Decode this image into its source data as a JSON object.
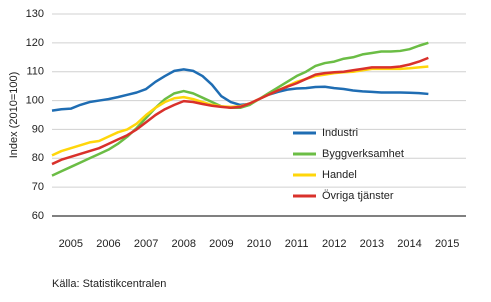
{
  "chart_data": {
    "type": "line",
    "y_label": "Index (2010=100)",
    "source": "Källa: Statistikcentralen",
    "x": [
      2005,
      2005.25,
      2005.5,
      2005.75,
      2006,
      2006.25,
      2006.5,
      2006.75,
      2007,
      2007.25,
      2007.5,
      2007.75,
      2008,
      2008.25,
      2008.5,
      2008.75,
      2009,
      2009.25,
      2009.5,
      2009.75,
      2010,
      2010.25,
      2010.5,
      2010.75,
      2011,
      2011.25,
      2011.5,
      2011.75,
      2012,
      2012.25,
      2012.5,
      2012.75,
      2013,
      2013.25,
      2013.5,
      2013.75,
      2014,
      2014.25,
      2014.5,
      2014.75,
      2015
    ],
    "series": [
      {
        "name": "Industri",
        "color": "#1f6db3",
        "values": [
          96.5,
          97,
          97.2,
          98.5,
          99.5,
          100,
          100.5,
          101.2,
          102,
          102.8,
          104,
          106.5,
          108.5,
          110.3,
          110.8,
          110.3,
          108.5,
          105.5,
          101.5,
          99.5,
          98.5,
          98.8,
          100.5,
          102,
          103,
          103.8,
          104.2,
          104.3,
          104.7,
          104.8,
          104.3,
          104,
          103.5,
          103.2,
          103,
          102.8,
          102.8,
          102.8,
          102.7,
          102.6,
          102.3
        ]
      },
      {
        "name": "Byggverksamhet",
        "color": "#6bbd45",
        "values": [
          74,
          75.5,
          77,
          78.5,
          80,
          81.5,
          83,
          85,
          87.5,
          90.5,
          94,
          97.5,
          100.5,
          102.5,
          103.3,
          102.5,
          101,
          99.5,
          98,
          97.5,
          97.5,
          98.5,
          100.5,
          102.5,
          104.5,
          106.5,
          108.5,
          110,
          112,
          113,
          113.5,
          114.5,
          115,
          116,
          116.5,
          117,
          117,
          117.2,
          117.8,
          119,
          120
        ]
      },
      {
        "name": "Handel",
        "color": "#ffd60a",
        "values": [
          81,
          82.5,
          83.5,
          84.5,
          85.5,
          86,
          87.5,
          89,
          90,
          92,
          95,
          97.5,
          99.5,
          100.8,
          101.2,
          100.5,
          99.5,
          98.5,
          98,
          97.8,
          98,
          99,
          100.5,
          102,
          103.5,
          105,
          106.5,
          107.5,
          108.5,
          109,
          109.5,
          109.8,
          110,
          110.5,
          111,
          111,
          111,
          111,
          111.2,
          111.5,
          111.8
        ]
      },
      {
        "name": "Övriga tjänster",
        "color": "#d9312b",
        "values": [
          78,
          79.5,
          80.5,
          81.5,
          82.5,
          83.5,
          85,
          86.5,
          88,
          90,
          92.5,
          95,
          97,
          98.5,
          99.8,
          99.5,
          98.8,
          98.2,
          97.8,
          97.5,
          97.8,
          99,
          100.5,
          102,
          103.5,
          104.8,
          106,
          107.5,
          109,
          109.5,
          109.8,
          110,
          110.5,
          111,
          111.5,
          111.5,
          111.5,
          111.8,
          112.5,
          113.5,
          114.8
        ]
      }
    ],
    "xlim": [
      2005,
      2016
    ],
    "xticks": [
      {
        "value": 2005.5,
        "label": "2005"
      },
      {
        "value": 2006.5,
        "label": "2006"
      },
      {
        "value": 2007.5,
        "label": "2007"
      },
      {
        "value": 2008.5,
        "label": "2008"
      },
      {
        "value": 2009.5,
        "label": "2009"
      },
      {
        "value": 2010.5,
        "label": "2010"
      },
      {
        "value": 2011.5,
        "label": "2011"
      },
      {
        "value": 2012.5,
        "label": "2012"
      },
      {
        "value": 2013.5,
        "label": "2013"
      },
      {
        "value": 2014.5,
        "label": "2014"
      },
      {
        "value": 2015.5,
        "label": "2015"
      }
    ],
    "ylim": [
      60,
      130
    ],
    "yticks": [
      60,
      70,
      80,
      90,
      100,
      110,
      120,
      130
    ],
    "grid": true,
    "legend": "right"
  }
}
